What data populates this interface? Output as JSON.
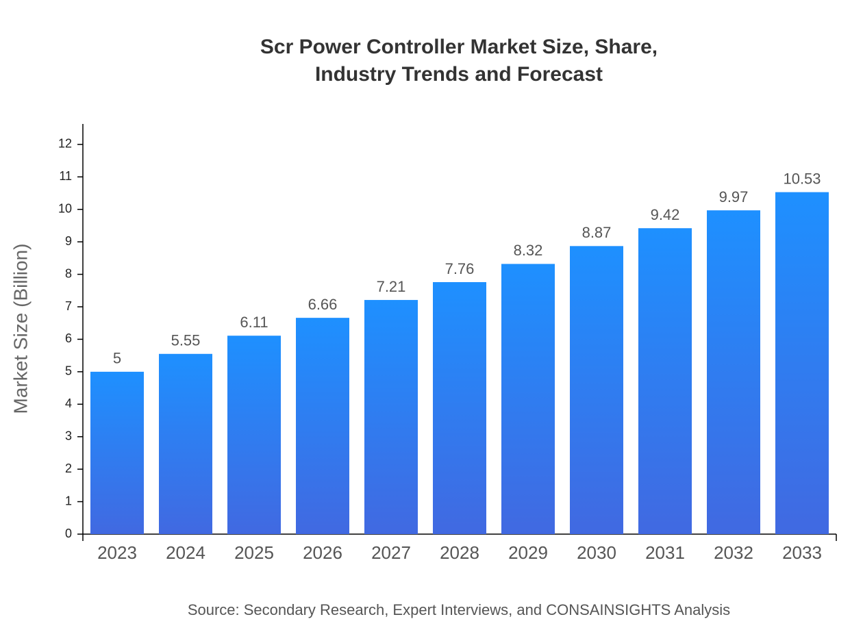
{
  "chart_data": {
    "type": "bar",
    "title": [
      "Scr Power Controller Market Size, Share,",
      "Industry Trends and Forecast"
    ],
    "y_label": "Market Size (Billion)",
    "source": "Source: Secondary Research, Expert Interviews, and CONSAINSIGHTS Analysis",
    "categories": [
      "2023",
      "2024",
      "2025",
      "2026",
      "2027",
      "2028",
      "2029",
      "2030",
      "2031",
      "2032",
      "2033"
    ],
    "values": [
      5,
      5.55,
      6.11,
      6.66,
      7.21,
      7.76,
      8.32,
      8.87,
      9.42,
      9.97,
      10.53
    ],
    "gradient": [
      "#1E90FF",
      "#4169E1"
    ],
    "ylim": [
      0,
      12.63
    ],
    "yticks": [
      0,
      1,
      2,
      3,
      4,
      5,
      6,
      7,
      8,
      9,
      10,
      11,
      12
    ]
  }
}
